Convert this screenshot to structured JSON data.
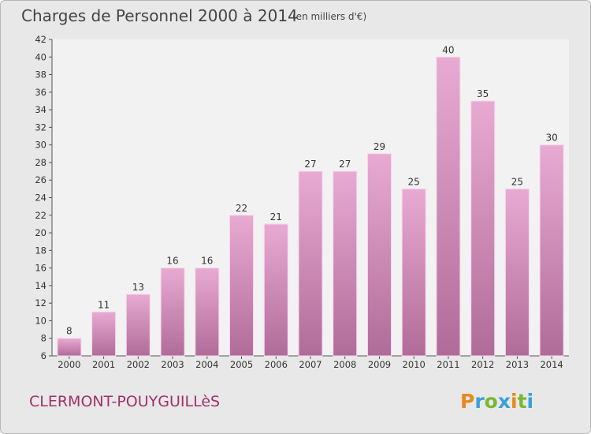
{
  "title": "Charges de Personnel 2000 à 2014",
  "subtitle": "(en milliers d'€)",
  "commune": "CLERMONT-POUYGUILLèS",
  "logo": "Proxiti",
  "colors": {
    "background": "#e8e8e8",
    "plot_background": "#f2f2f2",
    "bar_top": "#e8aad2",
    "bar_bottom": "#b06c98",
    "bar_edge": "#f6d6ea",
    "commune": "#a0306a"
  },
  "chart_data": {
    "type": "bar",
    "title": "Charges de Personnel 2000 à 2014",
    "subtitle": "(en milliers d'€)",
    "categories": [
      "2000",
      "2001",
      "2002",
      "2003",
      "2004",
      "2005",
      "2006",
      "2007",
      "2008",
      "2009",
      "2010",
      "2011",
      "2012",
      "2013",
      "2014"
    ],
    "values": [
      8,
      11,
      13,
      16,
      16,
      22,
      21,
      27,
      27,
      29,
      25,
      40,
      35,
      25,
      30
    ],
    "ylim": [
      6,
      42
    ],
    "yticks": [
      6,
      8,
      10,
      12,
      14,
      16,
      18,
      20,
      22,
      24,
      26,
      28,
      30,
      32,
      34,
      36,
      38,
      40,
      42
    ],
    "xlabel": "",
    "ylabel": "",
    "grid": false,
    "legend": "none"
  }
}
